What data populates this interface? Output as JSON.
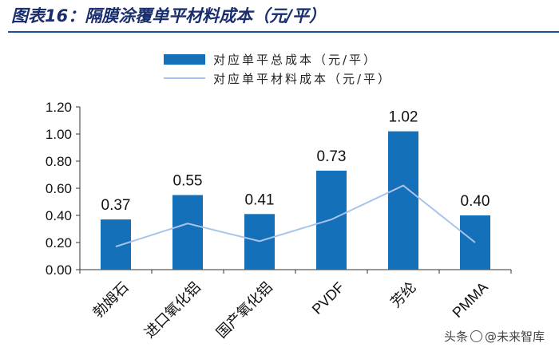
{
  "header": {
    "title": "图表16：隔膜涂覆单平材料成本（元/平）"
  },
  "watermark": {
    "prefix": "头条",
    "name": "@未来智库"
  },
  "colors": {
    "bar": "#1470b8",
    "line": "#a9c4ec",
    "title": "#1a2e6e",
    "rule": "#1f4e9c"
  },
  "chart_data": {
    "type": "bar",
    "title": "",
    "xlabel": "",
    "ylabel": "",
    "categories": [
      "勃姆石",
      "进口氧化铝",
      "国产氧化铝",
      "PVDF",
      "芳纶",
      "PMMA"
    ],
    "series": [
      {
        "name": "对应单平总成本（元/平）",
        "type": "bar",
        "values": [
          0.37,
          0.55,
          0.41,
          0.73,
          1.02,
          0.4
        ],
        "labels": [
          "0.37",
          "0.55",
          "0.41",
          "0.73",
          "1.02",
          "0.40"
        ]
      },
      {
        "name": "对应单平材料成本（元/平）",
        "type": "line",
        "values": [
          0.17,
          0.34,
          0.21,
          0.37,
          0.62,
          0.2
        ]
      }
    ],
    "ylim": [
      0,
      1.2
    ],
    "yticks": [
      "0.00",
      "0.20",
      "0.40",
      "0.60",
      "0.80",
      "1.00",
      "1.20"
    ],
    "grid": false,
    "legend_position": "top"
  }
}
